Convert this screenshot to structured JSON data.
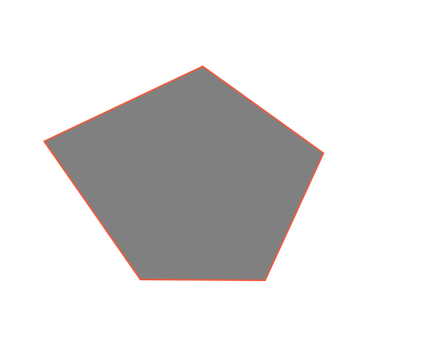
{
  "diagram": {
    "shape": "pentagon",
    "sides": 5,
    "fill_color": "#808080",
    "stroke_color": "#f05a3c",
    "background_color": "#ffffff"
  }
}
